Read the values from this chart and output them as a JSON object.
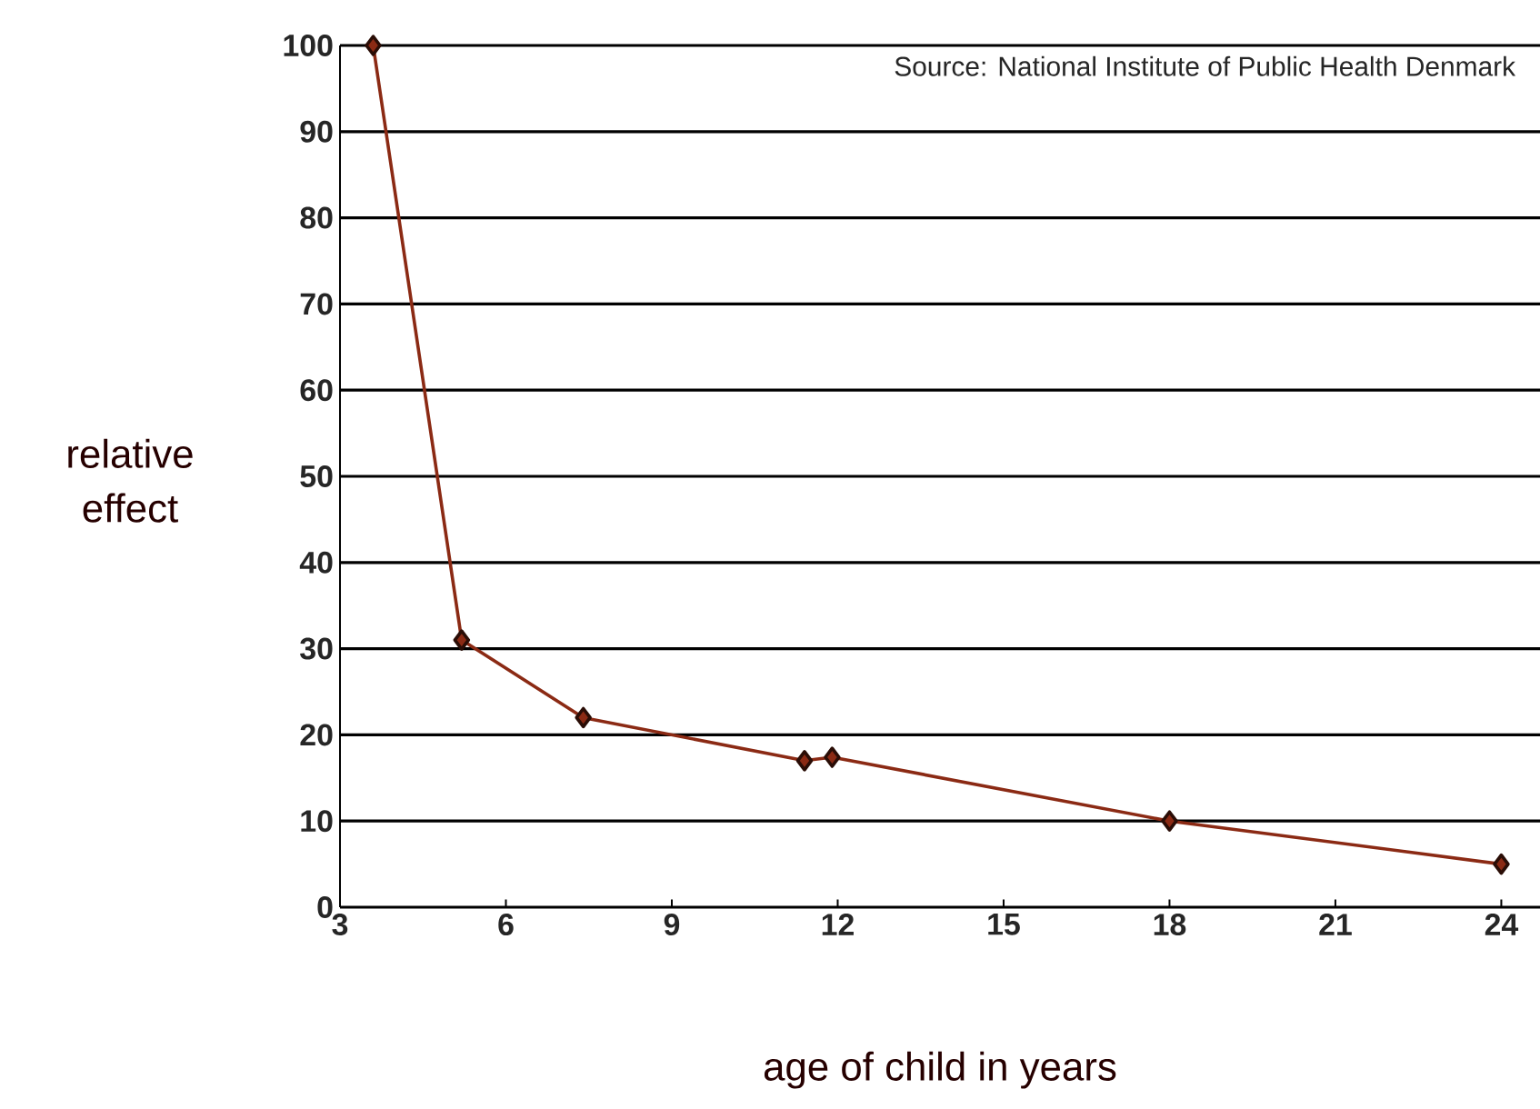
{
  "chart_data": {
    "type": "line",
    "xlabel": "age of child in years",
    "ylabel": "relative effect",
    "annotations": [
      "Source: National Institute of Public Health Denmark"
    ],
    "x": [
      3.6,
      5.2,
      7.4,
      11.4,
      11.9,
      18,
      24
    ],
    "series": [
      {
        "color": "#8b2a14",
        "values": [
          100,
          31,
          22,
          17,
          17.4,
          10,
          5
        ]
      }
    ],
    "xlim": [
      3,
      24.7
    ],
    "xticks": [
      3,
      6,
      9,
      12,
      15,
      18,
      21,
      24
    ],
    "ylim": [
      0,
      100
    ],
    "yticks": [
      0,
      10,
      20,
      30,
      40,
      50,
      60,
      70,
      80,
      90,
      100
    ],
    "grid": "y",
    "marker": "diamond",
    "line_style": "solid"
  }
}
